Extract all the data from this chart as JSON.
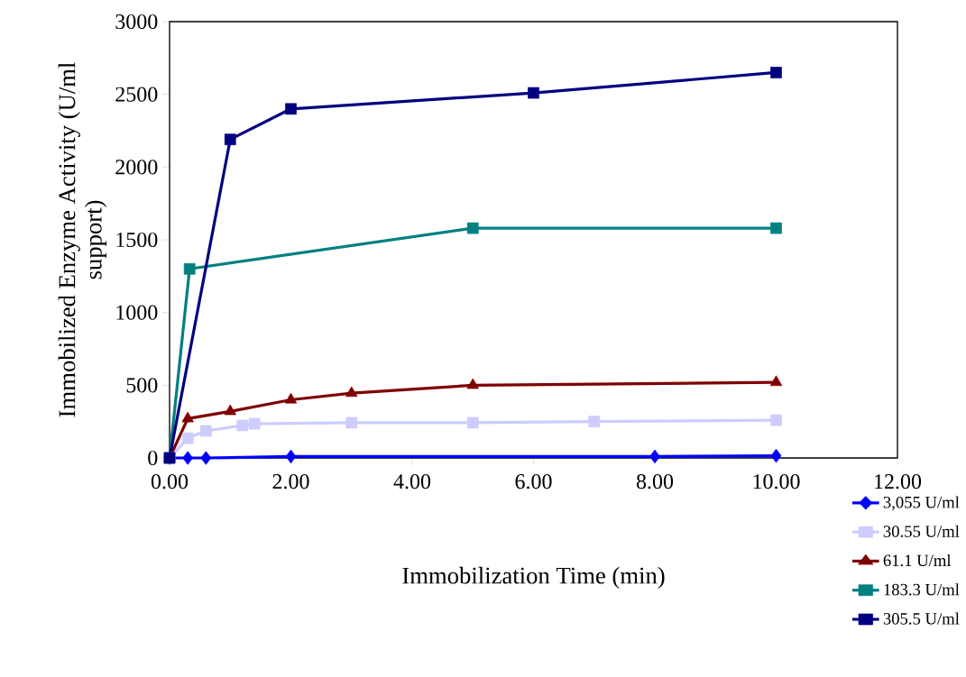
{
  "chart_data": {
    "type": "line",
    "xlabel": "Immobilization Time (min)",
    "ylabel": "Immobilized Enzyme Activity (U/ml support)",
    "xlim": [
      0,
      12
    ],
    "ylim": [
      0,
      3000
    ],
    "xticks": [
      {
        "value": 0,
        "label": "0.00"
      },
      {
        "value": 2,
        "label": "2.00"
      },
      {
        "value": 4,
        "label": "4.00"
      },
      {
        "value": 6,
        "label": "6.00"
      },
      {
        "value": 8,
        "label": "8.00"
      },
      {
        "value": 10,
        "label": "10.00"
      },
      {
        "value": 12,
        "label": "12.00"
      }
    ],
    "yticks": [
      0,
      500,
      1000,
      1500,
      2000,
      2500,
      3000
    ],
    "grid": false,
    "legend": "bottom right",
    "line_style": "solid",
    "series": [
      {
        "name": "3,055 U/ml",
        "color": "#0000ff",
        "marker": "diamond",
        "x": [
          0,
          0.3,
          0.6,
          2,
          8,
          10
        ],
        "values": [
          0,
          0,
          0,
          10,
          10,
          15
        ]
      },
      {
        "name": "30.55 U/ml",
        "color": "#ccccff",
        "marker": "square",
        "x": [
          0,
          0.3,
          0.6,
          1.2,
          1.4,
          3,
          5,
          7,
          10
        ],
        "values": [
          0,
          136,
          186,
          223,
          235,
          242,
          242,
          250,
          260
        ]
      },
      {
        "name": "61.1 U/ml",
        "color": "#800000",
        "marker": "triangle",
        "x": [
          0,
          0.3,
          1,
          2,
          3,
          5,
          10
        ],
        "values": [
          0,
          270,
          320,
          400,
          445,
          500,
          520
        ]
      },
      {
        "name": "183.3 U/ml",
        "color": "#008080",
        "marker": "square",
        "x": [
          0,
          0.33,
          5,
          10
        ],
        "values": [
          0,
          1300,
          1580,
          1580
        ]
      },
      {
        "name": "305.5 U/ml",
        "color": "#000080",
        "marker": "square",
        "x": [
          0,
          1,
          2,
          6,
          10
        ],
        "values": [
          0,
          2190,
          2400,
          2510,
          2650
        ]
      }
    ]
  }
}
